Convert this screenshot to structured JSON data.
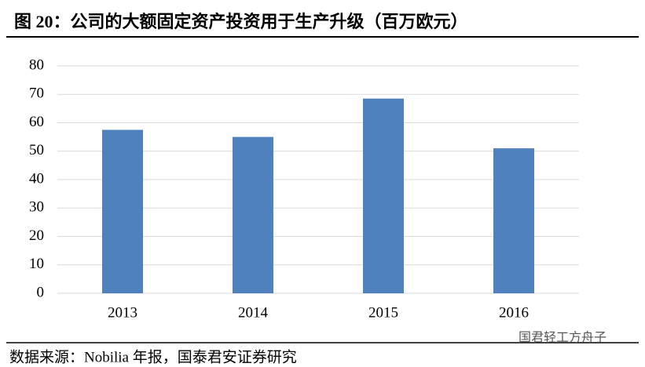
{
  "chart_data": {
    "type": "bar",
    "title": "图 20：公司的大额固定资产投资用于生产升级（百万欧元）",
    "categories": [
      "2013",
      "2014",
      "2015",
      "2016"
    ],
    "values": [
      57.5,
      55,
      68.5,
      51
    ],
    "color": "#4f81bd",
    "ylim": [
      0,
      80
    ],
    "yticks": [
      0,
      10,
      20,
      30,
      40,
      50,
      60,
      70,
      80
    ],
    "grid": true,
    "source": "数据来源：Nobilia 年报，国泰君安证券研究",
    "watermark": "国君轻工方舟子"
  }
}
